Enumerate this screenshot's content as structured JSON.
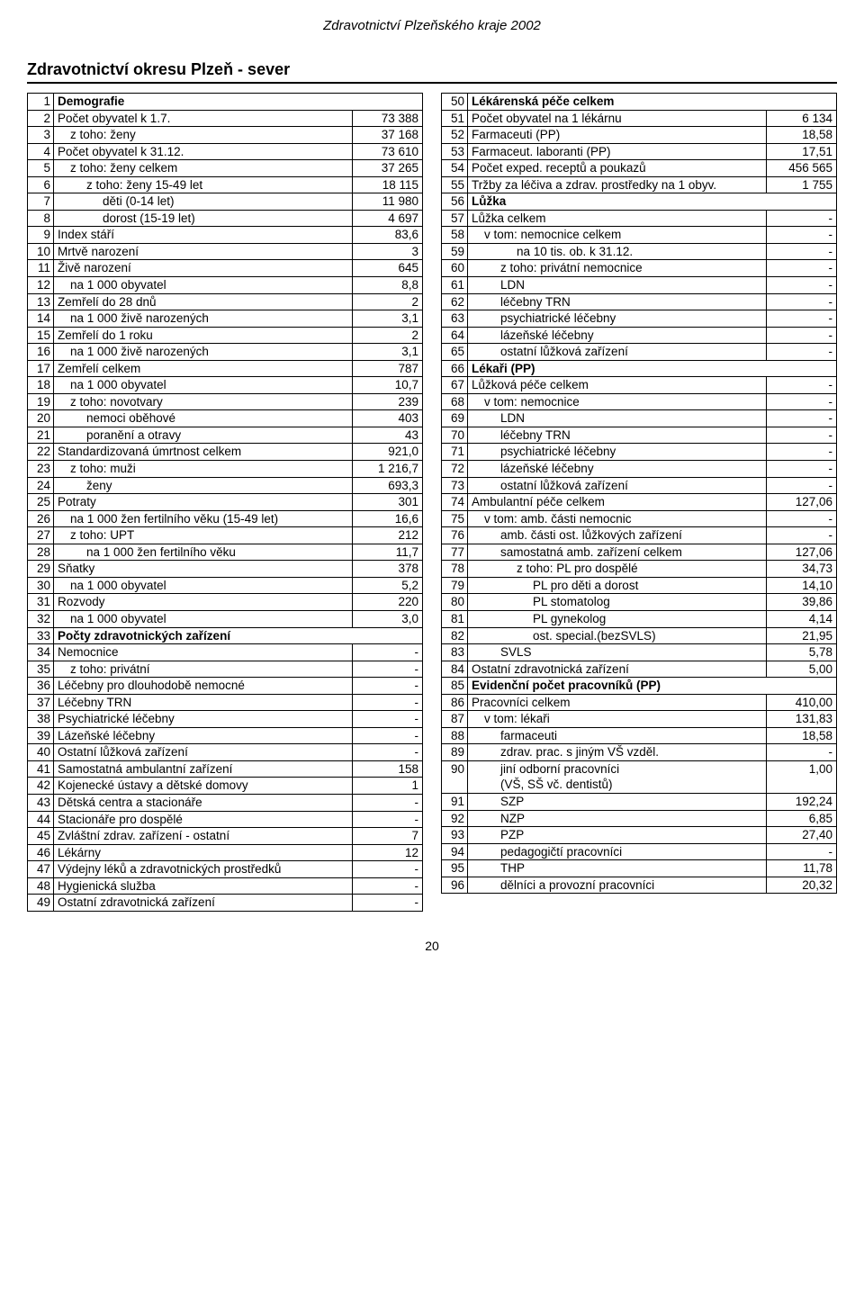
{
  "header": "Zdravotnictví Plzeňského kraje 2002",
  "title": "Zdravotnictví okresu Plzeň - sever",
  "pageNumber": "20",
  "left": [
    {
      "n": "1",
      "label": "Demografie",
      "val": "",
      "bold": true,
      "pad": 0
    },
    {
      "n": "2",
      "label": "Počet obyvatel k 1.7.",
      "val": "73 388",
      "pad": 0
    },
    {
      "n": "3",
      "label": "z toho: ženy",
      "val": "37 168",
      "pad": 1
    },
    {
      "n": "4",
      "label": "Počet obyvatel k 31.12.",
      "val": "73 610",
      "pad": 0
    },
    {
      "n": "5",
      "label": "z toho: ženy celkem",
      "val": "37 265",
      "pad": 1
    },
    {
      "n": "6",
      "label": "z toho: ženy 15-49 let",
      "val": "18 115",
      "pad": 2
    },
    {
      "n": "7",
      "label": "děti (0-14 let)",
      "val": "11 980",
      "pad": 3
    },
    {
      "n": "8",
      "label": "dorost (15-19 let)",
      "val": "4 697",
      "pad": 3
    },
    {
      "n": "9",
      "label": "Index stáří",
      "val": "83,6",
      "pad": 0
    },
    {
      "n": "10",
      "label": "Mrtvě narození",
      "val": "3",
      "pad": 0
    },
    {
      "n": "11",
      "label": "Živě narození",
      "val": "645",
      "pad": 0
    },
    {
      "n": "12",
      "label": "na 1 000 obyvatel",
      "val": "8,8",
      "pad": 1
    },
    {
      "n": "13",
      "label": "Zemřelí do 28 dnů",
      "val": "2",
      "pad": 0
    },
    {
      "n": "14",
      "label": "na 1 000 živě narozených",
      "val": "3,1",
      "pad": 1
    },
    {
      "n": "15",
      "label": "Zemřelí do 1 roku",
      "val": "2",
      "pad": 0
    },
    {
      "n": "16",
      "label": "na 1 000 živě narozených",
      "val": "3,1",
      "pad": 1
    },
    {
      "n": "17",
      "label": "Zemřelí celkem",
      "val": "787",
      "pad": 0
    },
    {
      "n": "18",
      "label": "na 1 000 obyvatel",
      "val": "10,7",
      "pad": 1
    },
    {
      "n": "19",
      "label": "z toho: novotvary",
      "val": "239",
      "pad": 1
    },
    {
      "n": "20",
      "label": "nemoci oběhové",
      "val": "403",
      "pad": 2
    },
    {
      "n": "21",
      "label": "poranění a otravy",
      "val": "43",
      "pad": 2
    },
    {
      "n": "22",
      "label": "Standardizovaná úmrtnost celkem",
      "val": "921,0",
      "pad": 0
    },
    {
      "n": "23",
      "label": "z toho: muži",
      "val": "1 216,7",
      "pad": 1
    },
    {
      "n": "24",
      "label": "ženy",
      "val": "693,3",
      "pad": 2
    },
    {
      "n": "25",
      "label": "Potraty",
      "val": "301",
      "pad": 0
    },
    {
      "n": "26",
      "label": "na 1 000 žen fertilního věku (15-49 let)",
      "val": "16,6",
      "pad": 1
    },
    {
      "n": "27",
      "label": "z toho: UPT",
      "val": "212",
      "pad": 1
    },
    {
      "n": "28",
      "label": "na 1 000 žen fertilního věku",
      "val": "11,7",
      "pad": 2
    },
    {
      "n": "29",
      "label": "Sňatky",
      "val": "378",
      "pad": 0
    },
    {
      "n": "30",
      "label": "na 1 000 obyvatel",
      "val": "5,2",
      "pad": 1
    },
    {
      "n": "31",
      "label": "Rozvody",
      "val": "220",
      "pad": 0
    },
    {
      "n": "32",
      "label": "na 1 000 obyvatel",
      "val": "3,0",
      "pad": 1
    },
    {
      "n": "33",
      "label": "Počty zdravotnických zařízení",
      "val": "",
      "bold": true,
      "pad": 0
    },
    {
      "n": "34",
      "label": "Nemocnice",
      "val": "-",
      "pad": 0
    },
    {
      "n": "35",
      "label": "z toho: privátní",
      "val": "-",
      "pad": 1
    },
    {
      "n": "36",
      "label": "Léčebny pro dlouhodobě nemocné",
      "val": "-",
      "pad": 0
    },
    {
      "n": "37",
      "label": "Léčebny TRN",
      "val": "-",
      "pad": 0
    },
    {
      "n": "38",
      "label": "Psychiatrické léčebny",
      "val": "-",
      "pad": 0
    },
    {
      "n": "39",
      "label": "Lázeňské léčebny",
      "val": "-",
      "pad": 0
    },
    {
      "n": "40",
      "label": "Ostatní lůžková zařízení",
      "val": "-",
      "pad": 0
    },
    {
      "n": "41",
      "label": "Samostatná ambulantní zařízení",
      "val": "158",
      "pad": 0
    },
    {
      "n": "42",
      "label": "Kojenecké ústavy a dětské domovy",
      "val": "1",
      "pad": 0
    },
    {
      "n": "43",
      "label": "Dětská centra a stacionáře",
      "val": "-",
      "pad": 0
    },
    {
      "n": "44",
      "label": "Stacionáře pro dospělé",
      "val": "-",
      "pad": 0
    },
    {
      "n": "45",
      "label": "Zvláštní zdrav. zařízení - ostatní",
      "val": "7",
      "pad": 0
    },
    {
      "n": "46",
      "label": "Lékárny",
      "val": "12",
      "pad": 0
    },
    {
      "n": "47",
      "label": "Výdejny léků a zdravotnických prostředků",
      "val": "-",
      "pad": 0
    },
    {
      "n": "48",
      "label": "Hygienická služba",
      "val": "-",
      "pad": 0
    },
    {
      "n": "49",
      "label": "Ostatní zdravotnická zařízení",
      "val": "-",
      "pad": 0
    }
  ],
  "right": [
    {
      "n": "50",
      "label": "Lékárenská péče celkem",
      "val": "",
      "bold": true,
      "pad": 0
    },
    {
      "n": "51",
      "label": "Počet obyvatel na 1 lékárnu",
      "val": "6 134",
      "pad": 0
    },
    {
      "n": "52",
      "label": "Farmaceuti (PP)",
      "val": "18,58",
      "pad": 0
    },
    {
      "n": "53",
      "label": "Farmaceut. laboranti (PP)",
      "val": "17,51",
      "pad": 0
    },
    {
      "n": "54",
      "label": "Počet exped. receptů a poukazů",
      "val": "456 565",
      "pad": 0
    },
    {
      "n": "55",
      "label": "Tržby za léčiva a zdrav. prostředky na 1 obyv.",
      "val": "1 755",
      "pad": 0
    },
    {
      "n": "56",
      "label": "Lůžka",
      "val": "",
      "bold": true,
      "pad": 0
    },
    {
      "n": "57",
      "label": "Lůžka celkem",
      "val": "-",
      "pad": 0
    },
    {
      "n": "58",
      "label": "v tom: nemocnice celkem",
      "val": "-",
      "pad": 1
    },
    {
      "n": "59",
      "label": "na 10 tis. ob. k 31.12.",
      "val": "-",
      "pad": 3
    },
    {
      "n": "60",
      "label": "z toho: privátní nemocnice",
      "val": "-",
      "pad": 2
    },
    {
      "n": "61",
      "label": "LDN",
      "val": "-",
      "pad": 2
    },
    {
      "n": "62",
      "label": "léčebny TRN",
      "val": "-",
      "pad": 2
    },
    {
      "n": "63",
      "label": "psychiatrické léčebny",
      "val": "-",
      "pad": 2
    },
    {
      "n": "64",
      "label": "lázeňské léčebny",
      "val": "-",
      "pad": 2
    },
    {
      "n": "65",
      "label": "ostatní lůžková zařízení",
      "val": "-",
      "pad": 2
    },
    {
      "n": "66",
      "label": "Lékaři (PP)",
      "val": "",
      "bold": true,
      "pad": 0
    },
    {
      "n": "67",
      "label": "Lůžková péče celkem",
      "val": "-",
      "pad": 0
    },
    {
      "n": "68",
      "label": "v tom: nemocnice",
      "val": "-",
      "pad": 1
    },
    {
      "n": "69",
      "label": "LDN",
      "val": "-",
      "pad": 2
    },
    {
      "n": "70",
      "label": "léčebny TRN",
      "val": "-",
      "pad": 2
    },
    {
      "n": "71",
      "label": "psychiatrické léčebny",
      "val": "-",
      "pad": 2
    },
    {
      "n": "72",
      "label": "lázeňské léčebny",
      "val": "-",
      "pad": 2
    },
    {
      "n": "73",
      "label": "ostatní lůžková zařízení",
      "val": "-",
      "pad": 2
    },
    {
      "n": "74",
      "label": "Ambulantní péče celkem",
      "val": "127,06",
      "pad": 0
    },
    {
      "n": "75",
      "label": "v tom: amb. části nemocnic",
      "val": "-",
      "pad": 1
    },
    {
      "n": "76",
      "label": "amb. části ost. lůžkových zařízení",
      "val": "-",
      "pad": 2
    },
    {
      "n": "77",
      "label": "samostatná amb. zařízení celkem",
      "val": "127,06",
      "pad": 2
    },
    {
      "n": "78",
      "label": "z toho: PL pro dospělé",
      "val": "34,73",
      "pad": 3
    },
    {
      "n": "79",
      "label": "PL pro děti a dorost",
      "val": "14,10",
      "pad": 4
    },
    {
      "n": "80",
      "label": "PL stomatolog",
      "val": "39,86",
      "pad": 4
    },
    {
      "n": "81",
      "label": "PL gynekolog",
      "val": "4,14",
      "pad": 4
    },
    {
      "n": "82",
      "label": "ost. special.(bezSVLS)",
      "val": "21,95",
      "pad": 4
    },
    {
      "n": "83",
      "label": "SVLS",
      "val": "5,78",
      "pad": 2
    },
    {
      "n": "84",
      "label": "Ostatní zdravotnická zařízení",
      "val": "5,00",
      "pad": 0
    },
    {
      "n": "85",
      "label": "Evidenční počet pracovníků (PP)",
      "val": "",
      "bold": true,
      "pad": 0
    },
    {
      "n": "86",
      "label": "Pracovníci celkem",
      "val": "410,00",
      "pad": 0
    },
    {
      "n": "87",
      "label": "v tom: lékaři",
      "val": "131,83",
      "pad": 1
    },
    {
      "n": "88",
      "label": "farmaceuti",
      "val": "18,58",
      "pad": 2
    },
    {
      "n": "89",
      "label": "zdrav. prac. s jiným VŠ vzděl.",
      "val": "-",
      "pad": 2
    },
    {
      "n": "90",
      "label": "jiní odborní pracovníci (VŠ, SŠ vč. dentistů)",
      "val": "1,00",
      "pad": 2,
      "twoLine": true,
      "labelA": "jiní odborní pracovníci",
      "labelB": "(VŠ, SŠ vč. dentistů)"
    },
    {
      "n": "91",
      "label": "SZP",
      "val": "192,24",
      "pad": 2
    },
    {
      "n": "92",
      "label": "NZP",
      "val": "6,85",
      "pad": 2
    },
    {
      "n": "93",
      "label": "PZP",
      "val": "27,40",
      "pad": 2
    },
    {
      "n": "94",
      "label": "pedagogičtí pracovníci",
      "val": "-",
      "pad": 2
    },
    {
      "n": "95",
      "label": "THP",
      "val": "11,78",
      "pad": 2
    },
    {
      "n": "96",
      "label": "dělníci a provozní pracovníci",
      "val": "20,32",
      "pad": 2
    }
  ]
}
